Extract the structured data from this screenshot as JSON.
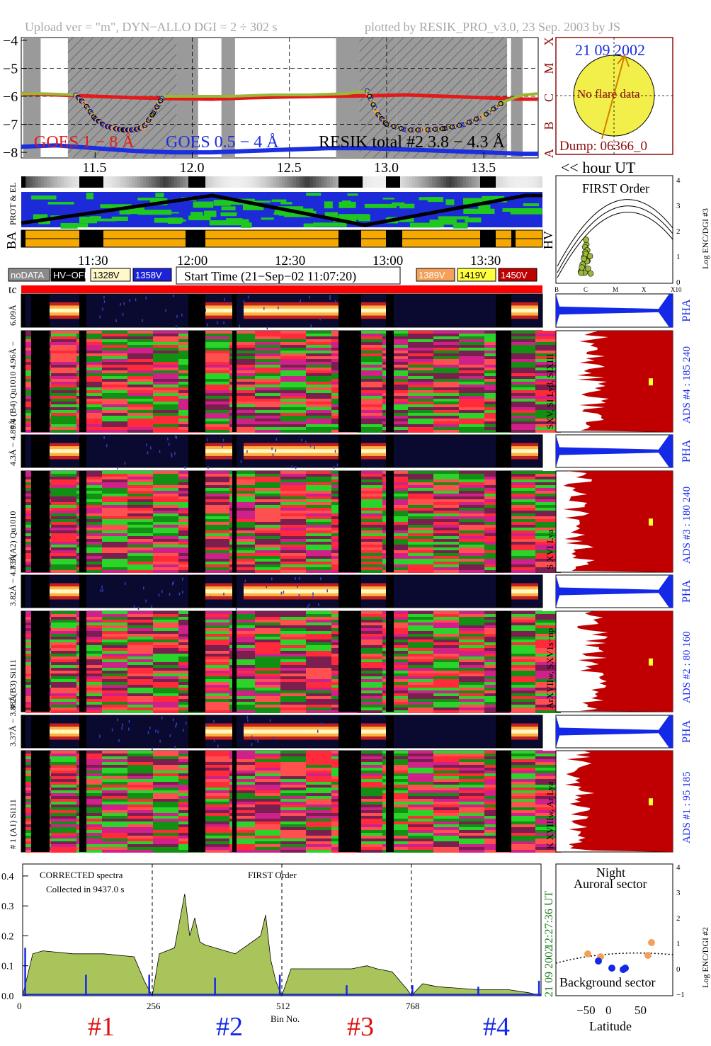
{
  "header": {
    "left": "Upload ver = \"m\", DYN−ALLO DGI =   2 ÷ 302 s",
    "right": "plotted by RESIK_PRO_v3.0, 23 Sep. 2003 by JS"
  },
  "colors": {
    "goes_long": "#e31a1a",
    "goes_short": "#1b2ee0",
    "resik_total": "#9ab838",
    "shading": "#9a9a9a",
    "flare_red": "#c00000",
    "pha_blue": "#1428e8",
    "spectrum_fill": "#a8c45a",
    "orange": "#f5a05a",
    "yellow_disc": "#f2ef4a",
    "sun_frame": "#8b1010"
  },
  "goes_panel": {
    "y_ticks": [
      "−4",
      "−5",
      "−6",
      "−7",
      "−8"
    ],
    "classes": [
      "X",
      "M",
      "C",
      "B",
      "A"
    ],
    "legend_goes_long": "GOES 1 − 8 Å",
    "legend_goes_short": "GOES 0.5 − 4 Å",
    "legend_resik": "RESIK total #2  3.8 − 4.3 Å",
    "x_ticks": [
      "11.5",
      "12.0",
      "12.5",
      "13.0",
      "13.5"
    ],
    "x_label": "<< hour UT"
  },
  "sun_box": {
    "date": "21 09 2002",
    "no_flare": "No flare data",
    "dump": "Dump: 06366_0"
  },
  "orbit_panel": {
    "label_prot": "PROT & EL",
    "label_ba": "BA",
    "label_hv": "HV"
  },
  "time_axis": {
    "ticks": [
      "11:30",
      "12:00",
      "12:30",
      "13:00",
      "13:30"
    ],
    "start_time": "Start Time (21−Sep−02 11:07:20)"
  },
  "hv_legend": [
    {
      "label": "noDATA",
      "bg": "#8a8a8a",
      "fg": "#ffffff"
    },
    {
      "label": "HV−OFF",
      "bg": "#000000",
      "fg": "#ffffff"
    },
    {
      "label": "1328V",
      "bg": "#fff8c8",
      "fg": "#000000"
    },
    {
      "label": "1358V",
      "bg": "#1c22d8",
      "fg": "#ffffff"
    },
    {
      "label": "1389V",
      "bg": "#f5a05a",
      "fg": "#ffffff"
    },
    {
      "label": "1419V",
      "bg": "#ffff40",
      "fg": "#000000"
    },
    {
      "label": "1450V",
      "bg": "#c00000",
      "fg": "#ffffff"
    }
  ],
  "tc_label": "tc",
  "channels": [
    {
      "pha_label": "6.09Å",
      "spec_label": "# 4 (B4) Qu1010 4.96Å −",
      "side_label": "SXV, SI Lyβ, SIXIII",
      "ads_label": "ADS #4 :   185 240",
      "pha_text": "PHA"
    },
    {
      "pha_label": "4.3Å − 4.89Å",
      "spec_label": "# 3 (A2) Qu1010",
      "side_label": "S XVI Lya",
      "ads_label": "ADS #3 :   180 240",
      "pha_text": "PHA"
    },
    {
      "pha_label": "3.82Å − 4.33Å",
      "spec_label": "# 2 (B3) Si111",
      "side_label": "ArXVIIw, SXV1s−np",
      "ads_label": "ADS #2 :    80 160",
      "pha_text": "PHA"
    },
    {
      "pha_label": "3.37Å − 3.88Å",
      "spec_label": "# 1 (A1) Si111",
      "side_label": "K XVIIIw, Ar Lya",
      "ads_label": "ADS #1 :    95 185",
      "pha_text": "PHA"
    }
  ],
  "first_order_panel": {
    "title": "FIRST Order",
    "y_label": "Log ENC/DGI #3",
    "y_ticks": [
      "4",
      "3",
      "2",
      "1",
      "0"
    ],
    "x_ticks": [
      "B",
      "C",
      "M",
      "X",
      "X10"
    ]
  },
  "spectrum_panel": {
    "text1": "CORRECTED spectra",
    "text2": "Collected in  9437.0 s",
    "text3": "FIRST Order",
    "y_ticks": [
      "0.4",
      "0.3",
      "0.2",
      "0.1",
      "0.0"
    ],
    "x_ticks": [
      "0",
      "256",
      "512",
      "768"
    ],
    "x_label": "Bin No.",
    "side_time": "12:27:36 UT",
    "side_date": "21 09 2002",
    "channel_labels": [
      "#1",
      "#2",
      "#3",
      "#4"
    ]
  },
  "latitude_panel": {
    "title1": "Night",
    "title2": "Auroral sector",
    "bottom_label": "Background sector",
    "x_label": "Latitude",
    "x_ticks": [
      "−50",
      "0",
      "50"
    ],
    "y_label": "Log ENC/DGI #2",
    "y_ticks": [
      "4",
      "3",
      "2",
      "1",
      "0",
      "−1"
    ]
  },
  "chart_data": [
    {
      "type": "line",
      "title": "",
      "xlabel": "<< hour UT",
      "ylabel": "",
      "xlim": [
        11.12,
        13.78
      ],
      "ylim": [
        -8.2,
        -3.9
      ],
      "series": [
        {
          "name": "GOES 1 − 8 Å",
          "x": [
            11.12,
            11.3,
            11.5,
            11.7,
            11.9,
            12.1,
            12.3,
            12.5,
            12.7,
            12.9,
            13.1,
            13.3,
            13.5,
            13.7,
            13.78
          ],
          "y": [
            -5.9,
            -5.95,
            -6.0,
            -6.05,
            -6.08,
            -6.1,
            -6.05,
            -6.02,
            -6.0,
            -5.98,
            -5.95,
            -6.0,
            -6.05,
            -6.1,
            -6.1
          ]
        },
        {
          "name": "GOES 0.5 − 4 Å",
          "x": [
            11.12,
            11.3,
            11.5,
            11.7,
            11.9,
            12.1,
            12.3,
            12.5,
            12.7,
            12.9,
            13.1,
            13.3,
            13.5,
            13.7,
            13.78
          ],
          "y": [
            -7.8,
            -7.75,
            -7.85,
            -7.95,
            -8.0,
            -8.0,
            -7.95,
            -7.9,
            -7.85,
            -7.85,
            -7.9,
            -7.95,
            -8.0,
            -8.05,
            -8.05
          ]
        },
        {
          "name": "RESIK total #2  3.8 − 4.3 Å",
          "x": [
            11.12,
            11.2,
            11.3,
            11.4,
            11.45,
            11.5,
            11.55,
            11.6,
            11.65,
            11.7,
            11.75,
            11.8,
            11.85,
            12.0,
            12.2,
            12.4,
            12.6,
            12.8,
            12.9,
            12.95,
            13.0,
            13.1,
            13.2,
            13.3,
            13.4,
            13.5,
            13.6,
            13.7,
            13.78
          ],
          "y": [
            -5.9,
            -5.9,
            -5.92,
            -5.95,
            -6.3,
            -6.8,
            -7.05,
            -7.15,
            -7.2,
            -7.2,
            -7.1,
            -6.6,
            -6.0,
            -6.0,
            -6.0,
            -5.95,
            -5.95,
            -5.9,
            -5.8,
            -6.6,
            -7.0,
            -7.2,
            -7.2,
            -7.15,
            -7.0,
            -6.7,
            -6.2,
            -5.95,
            -5.9
          ]
        }
      ]
    },
    {
      "type": "area",
      "title": "",
      "xlabel": "Bin No.",
      "ylabel": "",
      "xlim": [
        0,
        1024
      ],
      "ylim": [
        0,
        0.44
      ],
      "series": [
        {
          "name": "",
          "x": [
            0,
            20,
            40,
            100,
            160,
            220,
            240,
            256,
            270,
            300,
            320,
            330,
            340,
            350,
            360,
            380,
            420,
            470,
            480,
            490,
            500,
            512,
            530,
            560,
            600,
            650,
            680,
            700,
            730,
            760,
            768,
            790,
            820,
            860,
            900,
            960,
            1000,
            1024
          ],
          "y": [
            0.0,
            0.14,
            0.15,
            0.14,
            0.14,
            0.13,
            0.05,
            0.0,
            0.14,
            0.16,
            0.34,
            0.2,
            0.26,
            0.18,
            0.17,
            0.16,
            0.14,
            0.2,
            0.27,
            0.12,
            0.05,
            0.0,
            0.09,
            0.09,
            0.09,
            0.09,
            0.1,
            0.09,
            0.08,
            0.02,
            0.0,
            0.04,
            0.03,
            0.025,
            0.02,
            0.02,
            0.01,
            0.0
          ]
        }
      ]
    }
  ]
}
